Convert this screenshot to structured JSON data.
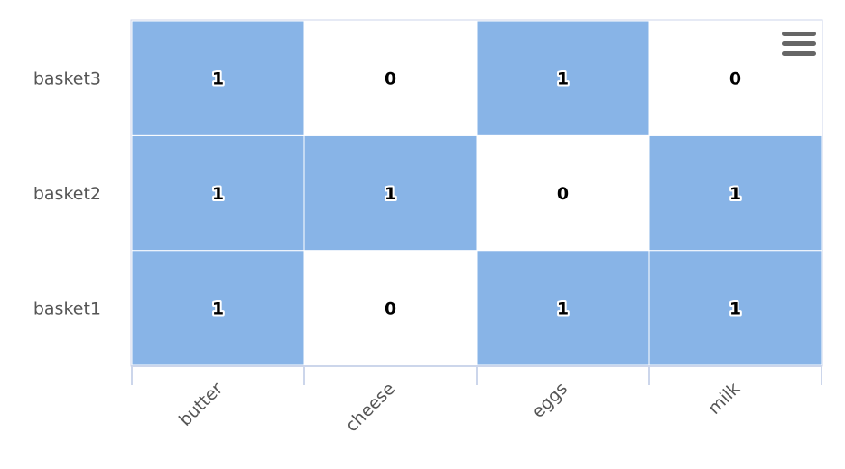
{
  "chart_data": {
    "type": "heatmap",
    "x_categories": [
      "butter",
      "cheese",
      "eggs",
      "milk"
    ],
    "y_categories": [
      "basket1",
      "basket2",
      "basket3"
    ],
    "values": [
      [
        1,
        0,
        1,
        1
      ],
      [
        1,
        1,
        0,
        1
      ],
      [
        1,
        0,
        1,
        0
      ]
    ],
    "value_range": [
      0,
      1
    ],
    "colors": {
      "min": "#ffffff",
      "max": "#88b4e7"
    },
    "data_labels": true,
    "legend": "none"
  },
  "menu": {
    "icon": "hamburger-menu-icon"
  }
}
